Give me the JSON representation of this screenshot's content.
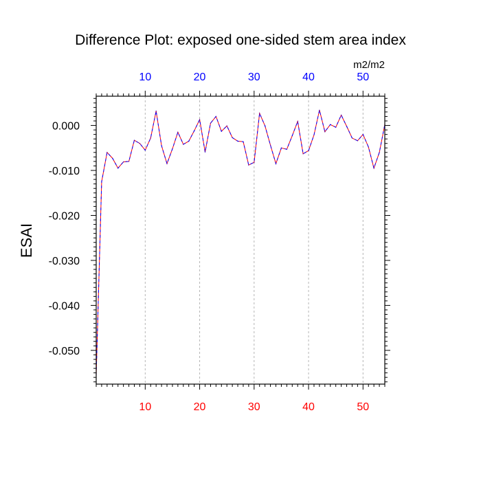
{
  "chart_data": {
    "type": "line",
    "title": "Difference Plot: exposed one-sided stem area index",
    "ylabel": "ESAI",
    "units_label": "m2/m2",
    "xlim": [
      1,
      54
    ],
    "ylim": [
      -0.0575,
      0.0065
    ],
    "x_ticks": [
      10,
      20,
      30,
      40,
      50
    ],
    "x_tick_labels": [
      "10",
      "20",
      "30",
      "40",
      "50"
    ],
    "y_ticks": [
      0.0,
      -0.01,
      -0.02,
      -0.03,
      -0.04,
      -0.05
    ],
    "y_tick_labels": [
      "0.000",
      "-0.010",
      "-0.020",
      "-0.030",
      "-0.040",
      "-0.050"
    ],
    "grid": "vertical dashed at major x ticks",
    "colors": {
      "bottom_axis_labels": "#ff0000",
      "top_axis_labels": "#0000ff",
      "series_a": "#ff0000",
      "series_b": "#0000ff"
    },
    "x": [
      1,
      2,
      3,
      4,
      5,
      6,
      7,
      8,
      9,
      10,
      11,
      12,
      13,
      14,
      15,
      16,
      17,
      18,
      19,
      20,
      21,
      22,
      23,
      24,
      25,
      26,
      27,
      28,
      29,
      30,
      31,
      32,
      33,
      34,
      35,
      36,
      37,
      38,
      39,
      40,
      41,
      42,
      43,
      44,
      45,
      46,
      47,
      48,
      49,
      50,
      51,
      52,
      53,
      54
    ],
    "series": [
      {
        "name": "series-red",
        "color": "#ff0000",
        "values": [
          -0.0555,
          -0.0125,
          -0.006,
          -0.0073,
          -0.0095,
          -0.0081,
          -0.008,
          -0.0033,
          -0.004,
          -0.0055,
          -0.0028,
          0.0032,
          -0.0045,
          -0.0085,
          -0.0052,
          -0.0015,
          -0.0042,
          -0.0035,
          -0.0012,
          0.0013,
          -0.0059,
          0.0005,
          0.002,
          -0.0013,
          -0.0001,
          -0.0027,
          -0.0035,
          -0.0036,
          -0.0088,
          -0.0082,
          0.0027,
          -0.0001,
          -0.0044,
          -0.0085,
          -0.005,
          -0.0053,
          -0.0023,
          0.0009,
          -0.0063,
          -0.0056,
          -0.0021,
          0.0034,
          -0.0014,
          0.0002,
          -0.0004,
          0.0023,
          -0.0002,
          -0.0028,
          -0.0034,
          -0.002,
          -0.0048,
          -0.0095,
          -0.006,
          0.0002
        ]
      },
      {
        "name": "series-blue",
        "color": "#0000ff",
        "values": [
          -0.0555,
          -0.0125,
          -0.006,
          -0.0073,
          -0.0095,
          -0.0081,
          -0.008,
          -0.0033,
          -0.004,
          -0.0055,
          -0.0028,
          0.0032,
          -0.0045,
          -0.0085,
          -0.0052,
          -0.0015,
          -0.0042,
          -0.0035,
          -0.0012,
          0.0013,
          -0.0059,
          0.0005,
          0.002,
          -0.0013,
          -0.0001,
          -0.0027,
          -0.0035,
          -0.0036,
          -0.0088,
          -0.0082,
          0.0027,
          -0.0001,
          -0.0044,
          -0.0085,
          -0.005,
          -0.0053,
          -0.0023,
          0.0009,
          -0.0063,
          -0.0056,
          -0.0021,
          0.0034,
          -0.0014,
          0.0002,
          -0.0004,
          0.0023,
          -0.0002,
          -0.0028,
          -0.0034,
          -0.002,
          -0.0048,
          -0.0095,
          -0.006,
          0.0002
        ]
      }
    ]
  }
}
